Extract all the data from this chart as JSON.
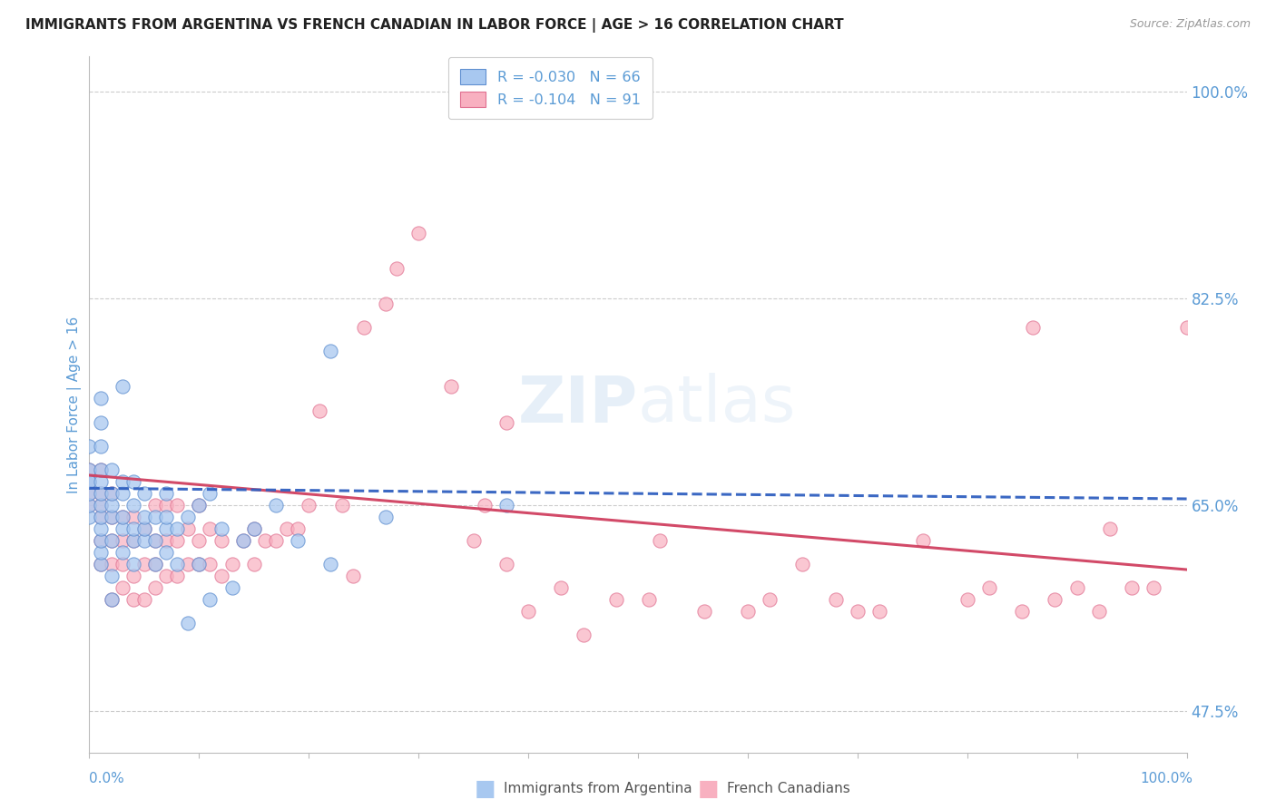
{
  "title": "IMMIGRANTS FROM ARGENTINA VS FRENCH CANADIAN IN LABOR FORCE | AGE > 16 CORRELATION CHART",
  "source": "Source: ZipAtlas.com",
  "ylabel": "In Labor Force | Age > 16",
  "xlim": [
    0.0,
    1.0
  ],
  "ylim": [
    0.44,
    1.03
  ],
  "argentina_R": -0.03,
  "argentina_N": 66,
  "french_R": -0.104,
  "french_N": 91,
  "argentina_color": "#A8C8F0",
  "argentina_edge": "#6090D0",
  "french_color": "#F8B0C0",
  "french_edge": "#E07090",
  "argentina_line_color": "#3060C0",
  "french_line_color": "#D04060",
  "tick_color": "#5B9BD5",
  "grid_color": "#CCCCCC",
  "background_color": "#FFFFFF",
  "watermark": "ZIPatlas",
  "arg_line_start_y": 0.664,
  "arg_line_end_y": 0.655,
  "fre_line_start_y": 0.675,
  "fre_line_end_y": 0.595,
  "argentina_x": [
    0.0,
    0.0,
    0.0,
    0.0,
    0.0,
    0.0,
    0.0,
    0.01,
    0.01,
    0.01,
    0.01,
    0.01,
    0.01,
    0.01,
    0.01,
    0.01,
    0.01,
    0.01,
    0.01,
    0.02,
    0.02,
    0.02,
    0.02,
    0.02,
    0.02,
    0.02,
    0.03,
    0.03,
    0.03,
    0.03,
    0.03,
    0.03,
    0.04,
    0.04,
    0.04,
    0.04,
    0.04,
    0.05,
    0.05,
    0.05,
    0.05,
    0.06,
    0.06,
    0.06,
    0.07,
    0.07,
    0.07,
    0.07,
    0.08,
    0.08,
    0.09,
    0.09,
    0.1,
    0.1,
    0.11,
    0.11,
    0.12,
    0.13,
    0.14,
    0.15,
    0.17,
    0.19,
    0.22,
    0.22,
    0.27,
    0.38
  ],
  "argentina_y": [
    0.64,
    0.65,
    0.66,
    0.67,
    0.68,
    0.67,
    0.7,
    0.6,
    0.61,
    0.62,
    0.63,
    0.64,
    0.65,
    0.66,
    0.67,
    0.68,
    0.7,
    0.72,
    0.74,
    0.57,
    0.59,
    0.62,
    0.64,
    0.65,
    0.66,
    0.68,
    0.61,
    0.63,
    0.64,
    0.66,
    0.67,
    0.75,
    0.6,
    0.62,
    0.63,
    0.65,
    0.67,
    0.62,
    0.63,
    0.64,
    0.66,
    0.6,
    0.62,
    0.64,
    0.61,
    0.63,
    0.64,
    0.66,
    0.6,
    0.63,
    0.55,
    0.64,
    0.6,
    0.65,
    0.57,
    0.66,
    0.63,
    0.58,
    0.62,
    0.63,
    0.65,
    0.62,
    0.6,
    0.78,
    0.64,
    0.65
  ],
  "french_x": [
    0.0,
    0.0,
    0.0,
    0.0,
    0.01,
    0.01,
    0.01,
    0.01,
    0.01,
    0.01,
    0.02,
    0.02,
    0.02,
    0.02,
    0.02,
    0.03,
    0.03,
    0.03,
    0.03,
    0.04,
    0.04,
    0.04,
    0.04,
    0.05,
    0.05,
    0.05,
    0.06,
    0.06,
    0.06,
    0.06,
    0.07,
    0.07,
    0.07,
    0.08,
    0.08,
    0.08,
    0.09,
    0.09,
    0.1,
    0.1,
    0.1,
    0.11,
    0.11,
    0.12,
    0.12,
    0.13,
    0.14,
    0.15,
    0.15,
    0.16,
    0.17,
    0.18,
    0.19,
    0.2,
    0.21,
    0.23,
    0.24,
    0.25,
    0.27,
    0.28,
    0.3,
    0.33,
    0.35,
    0.36,
    0.38,
    0.38,
    0.4,
    0.43,
    0.45,
    0.48,
    0.51,
    0.52,
    0.56,
    0.6,
    0.62,
    0.65,
    0.68,
    0.7,
    0.72,
    0.76,
    0.8,
    0.82,
    0.85,
    0.86,
    0.88,
    0.9,
    0.92,
    0.93,
    0.95,
    0.97,
    1.0
  ],
  "french_y": [
    0.65,
    0.66,
    0.67,
    0.68,
    0.6,
    0.62,
    0.64,
    0.65,
    0.66,
    0.68,
    0.57,
    0.6,
    0.62,
    0.64,
    0.66,
    0.58,
    0.6,
    0.62,
    0.64,
    0.57,
    0.59,
    0.62,
    0.64,
    0.57,
    0.6,
    0.63,
    0.58,
    0.6,
    0.62,
    0.65,
    0.59,
    0.62,
    0.65,
    0.59,
    0.62,
    0.65,
    0.6,
    0.63,
    0.6,
    0.62,
    0.65,
    0.6,
    0.63,
    0.59,
    0.62,
    0.6,
    0.62,
    0.6,
    0.63,
    0.62,
    0.62,
    0.63,
    0.63,
    0.65,
    0.73,
    0.65,
    0.59,
    0.8,
    0.82,
    0.85,
    0.88,
    0.75,
    0.62,
    0.65,
    0.6,
    0.72,
    0.56,
    0.58,
    0.54,
    0.57,
    0.57,
    0.62,
    0.56,
    0.56,
    0.57,
    0.6,
    0.57,
    0.56,
    0.56,
    0.62,
    0.57,
    0.58,
    0.56,
    0.8,
    0.57,
    0.58,
    0.56,
    0.63,
    0.58,
    0.58,
    0.8
  ]
}
